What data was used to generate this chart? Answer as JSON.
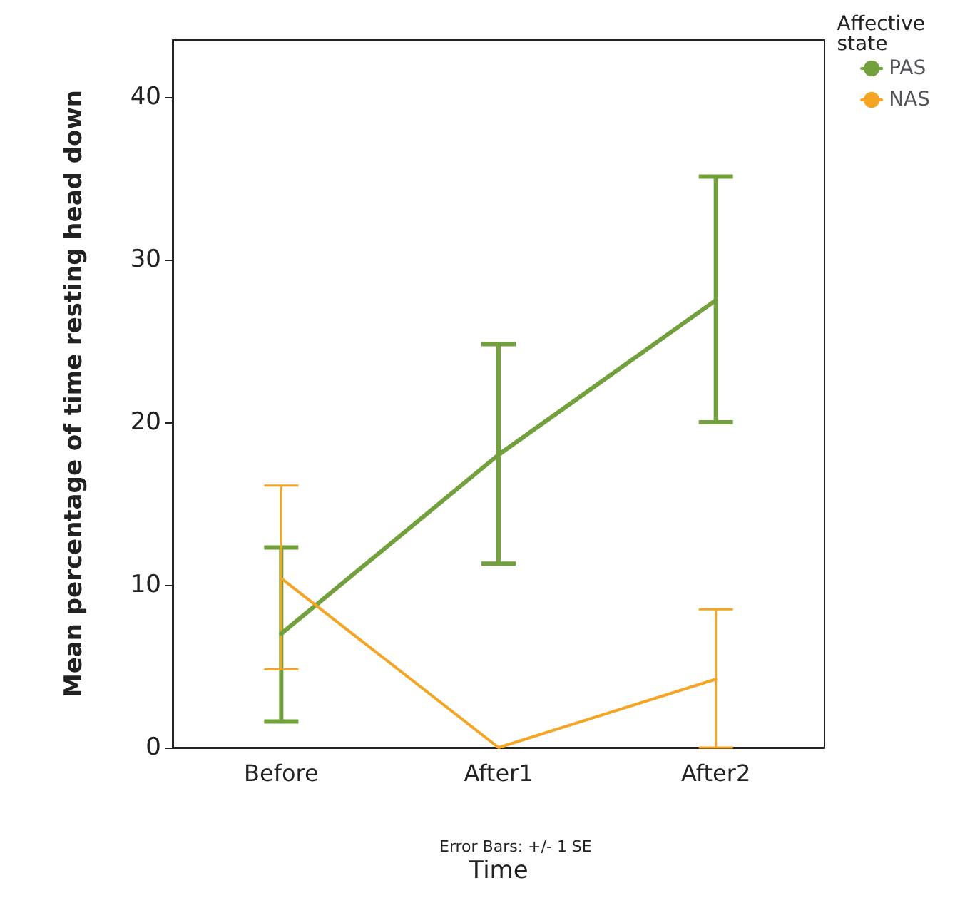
{
  "chart_data": {
    "type": "line",
    "xlabel": "Time",
    "ylabel": "Mean percentage of time resting head down",
    "legend_title": "Affective state",
    "categories": [
      "Before",
      "After1",
      "After2"
    ],
    "series": [
      {
        "name": "PAS",
        "color": "#72a03c",
        "values": [
          7.0,
          18.0,
          27.5
        ],
        "errors": [
          [
            1.6,
            12.3
          ],
          [
            11.3,
            24.8
          ],
          [
            20.0,
            35.1
          ]
        ]
      },
      {
        "name": "NAS",
        "color": "#f5a524",
        "values": [
          10.4,
          0,
          4.2
        ],
        "errors": [
          [
            4.8,
            16.1
          ],
          null,
          [
            0,
            8.5
          ]
        ]
      }
    ],
    "ylim": [
      0,
      43.5
    ],
    "yticks": [
      0,
      10,
      20,
      30,
      40
    ],
    "grid": false,
    "legend": "top right",
    "marker": "none",
    "line_style": "solid",
    "annotations": [
      "Error Bars: +/- 1 SE"
    ]
  }
}
